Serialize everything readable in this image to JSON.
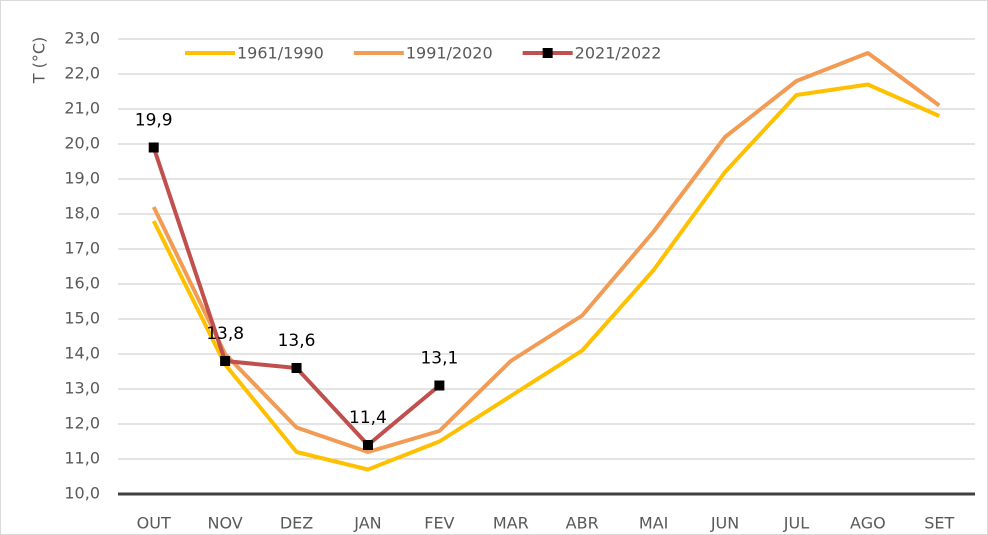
{
  "chart_data": {
    "type": "line",
    "y_label": "T (°C)",
    "categories": [
      "OUT",
      "NOV",
      "DEZ",
      "JAN",
      "FEV",
      "MAR",
      "ABR",
      "MAI",
      "JUN",
      "JUL",
      "AGO",
      "SET"
    ],
    "series": [
      {
        "name": "1961/1990",
        "color": "#ffc000",
        "values": [
          17.8,
          13.7,
          11.2,
          10.7,
          11.5,
          12.8,
          14.1,
          16.4,
          19.2,
          21.4,
          21.7,
          20.8
        ]
      },
      {
        "name": "1991/2020",
        "color": "#f29b55",
        "values": [
          18.2,
          14.0,
          11.9,
          11.2,
          11.8,
          13.8,
          15.1,
          17.5,
          20.2,
          21.8,
          22.6,
          21.1
        ]
      },
      {
        "name": "2021/2022",
        "color": "#c0504d",
        "marker": "square",
        "marker_color": "#000000",
        "values": [
          19.9,
          13.8,
          13.6,
          11.4,
          13.1,
          null,
          null,
          null,
          null,
          null,
          null,
          null
        ],
        "value_labels": [
          "19,9",
          "13,8",
          "13,6",
          "11,4",
          "13,1",
          null,
          null,
          null,
          null,
          null,
          null,
          null
        ]
      }
    ],
    "ylim": [
      10,
      23
    ],
    "yticks": [
      {
        "value": 10,
        "label": "10,0"
      },
      {
        "value": 11,
        "label": "11,0"
      },
      {
        "value": 12,
        "label": "12,0"
      },
      {
        "value": 13,
        "label": "13,0"
      },
      {
        "value": 14,
        "label": "14,0"
      },
      {
        "value": 15,
        "label": "15,0"
      },
      {
        "value": 16,
        "label": "16,0"
      },
      {
        "value": 17,
        "label": "17,0"
      },
      {
        "value": 18,
        "label": "18,0"
      },
      {
        "value": 19,
        "label": "19,0"
      },
      {
        "value": 20,
        "label": "20,0"
      },
      {
        "value": 21,
        "label": "21,0"
      },
      {
        "value": 22,
        "label": "22,0"
      },
      {
        "value": 23,
        "label": "23,0"
      }
    ],
    "grid": true,
    "legend": "top"
  }
}
